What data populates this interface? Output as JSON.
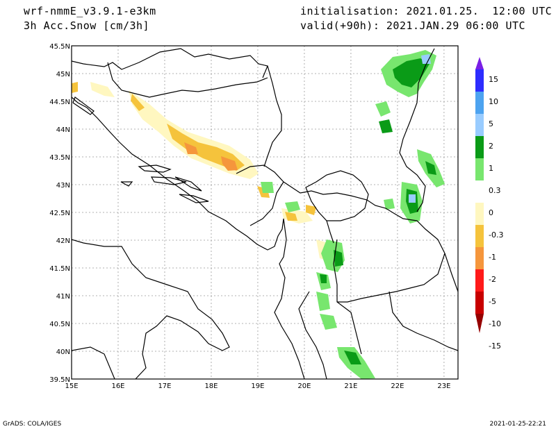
{
  "header": {
    "model": "wrf-nmmE_v3.9.1-e3km",
    "field": "3h Acc.Snow [cm/3h]",
    "init": "initialisation: 2021.01.25.  12:00 UTC",
    "valid": "valid(+90h): 2021.JAN.29 06:00 UTC"
  },
  "map": {
    "lon_labels": [
      "15E",
      "16E",
      "17E",
      "18E",
      "19E",
      "20E",
      "21E",
      "22E",
      "23E"
    ],
    "lat_labels": [
      "45.5N",
      "45N",
      "44.5N",
      "44N",
      "43.5N",
      "43N",
      "42.5N",
      "42N",
      "41.5N",
      "41N",
      "40.5N",
      "40N",
      "39.5N"
    ],
    "lon_range": [
      15,
      23.3
    ],
    "lat_range": [
      39.5,
      45.5
    ],
    "grid": true
  },
  "colorbar": {
    "labels": [
      "15",
      "10",
      "5",
      "2",
      "1",
      "0.3",
      "0",
      "-0.3",
      "-1",
      "-2",
      "-5",
      "-10",
      "-15"
    ],
    "colors": [
      "#7a1fe6",
      "#2d2dff",
      "#4da3f0",
      "#99ccff",
      "#0a9b17",
      "#78e66e",
      "#ffffff",
      "#fff7c0",
      "#f5c33c",
      "#f5963c",
      "#ff1a1a",
      "#c80000",
      "#960000"
    ]
  },
  "footer": {
    "left": "GrADS: COLA/IGES",
    "right": "2021-01-25-22:21"
  }
}
